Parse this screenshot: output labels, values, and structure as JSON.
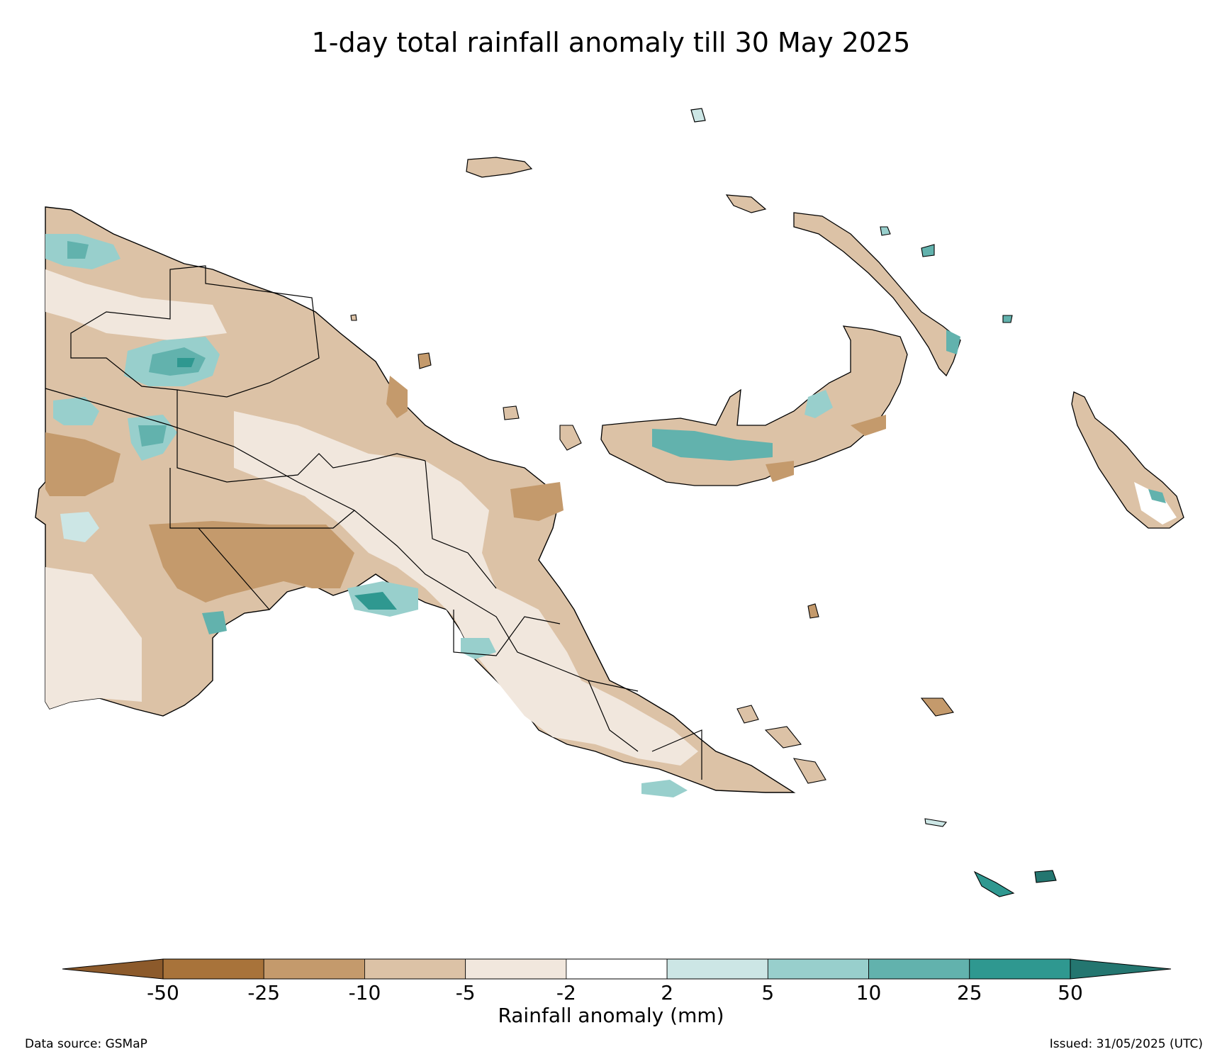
{
  "title": "1-day total rainfall anomaly till 30 May 2025",
  "colorbar": {
    "label": "Rainfall anomaly (mm)",
    "ticks": [
      "-50",
      "-25",
      "-10",
      "-5",
      "-2",
      "2",
      "5",
      "10",
      "25",
      "50"
    ],
    "colors": [
      "#a8733a",
      "#c49a6c",
      "#dcc2a6",
      "#f1e7dd",
      "#ffffff",
      "#cce6e5",
      "#98cfcc",
      "#62b2ad",
      "#2f9890"
    ],
    "extend_min_color": "#8c5a2b",
    "extend_max_color": "#247670"
  },
  "data_source": "Data source: GSMaP",
  "issued": "Issued: 31/05/2025 (UTC)"
}
